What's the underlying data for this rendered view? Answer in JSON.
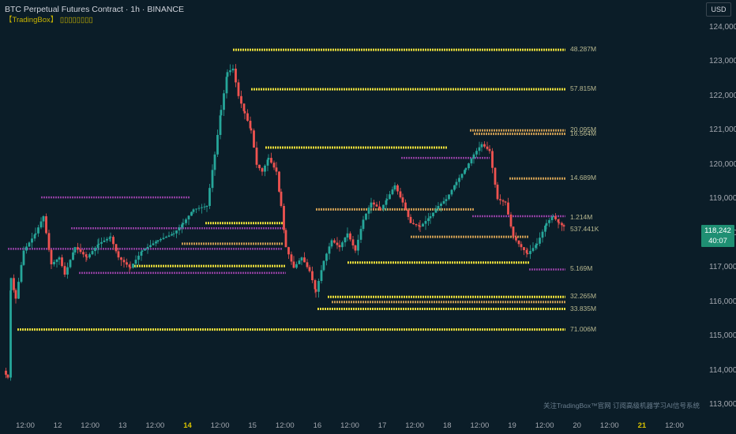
{
  "header": {
    "symbol": "BTC Perpetual Futures Contract · 1h · BINANCE",
    "indicator": "【TradingBox】 ▯▯▯▯▯▯▯▯"
  },
  "currency_button": "USD",
  "price_axis": [
    "124,000",
    "123,000",
    "122,000",
    "121,000",
    "120,000",
    "119,000",
    "118,000",
    "117,000",
    "116,000",
    "115,000",
    "114,000",
    "113,000"
  ],
  "time_axis": [
    {
      "label": "12:00",
      "day": false
    },
    {
      "label": "12",
      "day": false
    },
    {
      "label": "12:00",
      "day": false
    },
    {
      "label": "13",
      "day": false
    },
    {
      "label": "12:00",
      "day": false
    },
    {
      "label": "14",
      "day": true
    },
    {
      "label": "12:00",
      "day": false
    },
    {
      "label": "15",
      "day": false
    },
    {
      "label": "12:00",
      "day": false
    },
    {
      "label": "16",
      "day": false
    },
    {
      "label": "12:00",
      "day": false
    },
    {
      "label": "17",
      "day": false
    },
    {
      "label": "12:00",
      "day": false
    },
    {
      "label": "18",
      "day": false
    },
    {
      "label": "12:00",
      "day": false
    },
    {
      "label": "19",
      "day": false
    },
    {
      "label": "12:00",
      "day": false
    },
    {
      "label": "20",
      "day": false
    },
    {
      "label": "12:00",
      "day": false
    },
    {
      "label": "21",
      "day": true
    },
    {
      "label": "12:00",
      "day": false
    }
  ],
  "current_price": {
    "price": "118,242",
    "countdown": "40:07"
  },
  "volume_labels": [
    {
      "text": "48.287M",
      "price": 123350
    },
    {
      "text": "57.815M",
      "price": 122200
    },
    {
      "text": "20.095M",
      "price": 121000
    },
    {
      "text": "16.564M",
      "price": 120900
    },
    {
      "text": "14.689M",
      "price": 119600
    },
    {
      "text": "1.214M",
      "price": 118450
    },
    {
      "text": "537.441K",
      "price": 118100
    },
    {
      "text": "5.169M",
      "price": 116950
    },
    {
      "text": "32.265M",
      "price": 116150
    },
    {
      "text": "33.835M",
      "price": 115800
    },
    {
      "text": "71.006M",
      "price": 115200
    }
  ],
  "watermark": "关注TradingBox™官网 订阅高级机器学习AI信号系统",
  "colors": {
    "bull": "#26a69a",
    "bear": "#ef5350",
    "support": "#f0e040",
    "resist": "#9c3fb0"
  },
  "chart_data": {
    "type": "candlestick",
    "ylim": [
      112800,
      124800
    ],
    "x_range": [
      0,
      880
    ],
    "levels": [
      {
        "price": 123350,
        "from": 295,
        "to": 716,
        "style": "yellow"
      },
      {
        "price": 122200,
        "from": 318,
        "to": 716,
        "style": "yellow"
      },
      {
        "price": 121000,
        "from": 595,
        "to": 716,
        "style": "orange"
      },
      {
        "price": 120900,
        "from": 600,
        "to": 716,
        "style": "orange"
      },
      {
        "price": 120500,
        "from": 336,
        "to": 566,
        "style": "yellow"
      },
      {
        "price": 120200,
        "from": 508,
        "to": 620,
        "style": "purple"
      },
      {
        "price": 119600,
        "from": 645,
        "to": 716,
        "style": "orange"
      },
      {
        "price": 119050,
        "from": 52,
        "to": 240,
        "style": "purple"
      },
      {
        "price": 118700,
        "from": 400,
        "to": 600,
        "style": "orange"
      },
      {
        "price": 118500,
        "from": 598,
        "to": 716,
        "style": "purple"
      },
      {
        "price": 118300,
        "from": 260,
        "to": 358,
        "style": "yellow"
      },
      {
        "price": 118150,
        "from": 90,
        "to": 358,
        "style": "purple"
      },
      {
        "price": 117900,
        "from": 520,
        "to": 670,
        "style": "orange"
      },
      {
        "price": 117700,
        "from": 230,
        "to": 358,
        "style": "orange"
      },
      {
        "price": 117550,
        "from": 10,
        "to": 358,
        "style": "purple"
      },
      {
        "price": 117150,
        "from": 440,
        "to": 670,
        "style": "yellow"
      },
      {
        "price": 117050,
        "from": 170,
        "to": 362,
        "style": "yellow"
      },
      {
        "price": 116950,
        "from": 670,
        "to": 716,
        "style": "purple"
      },
      {
        "price": 116850,
        "from": 100,
        "to": 362,
        "style": "purple"
      },
      {
        "price": 116150,
        "from": 415,
        "to": 716,
        "style": "yellow"
      },
      {
        "price": 116000,
        "from": 420,
        "to": 716,
        "style": "orange"
      },
      {
        "price": 115800,
        "from": 402,
        "to": 716,
        "style": "yellow"
      },
      {
        "price": 115200,
        "from": 22,
        "to": 716,
        "style": "yellow"
      }
    ]
  }
}
